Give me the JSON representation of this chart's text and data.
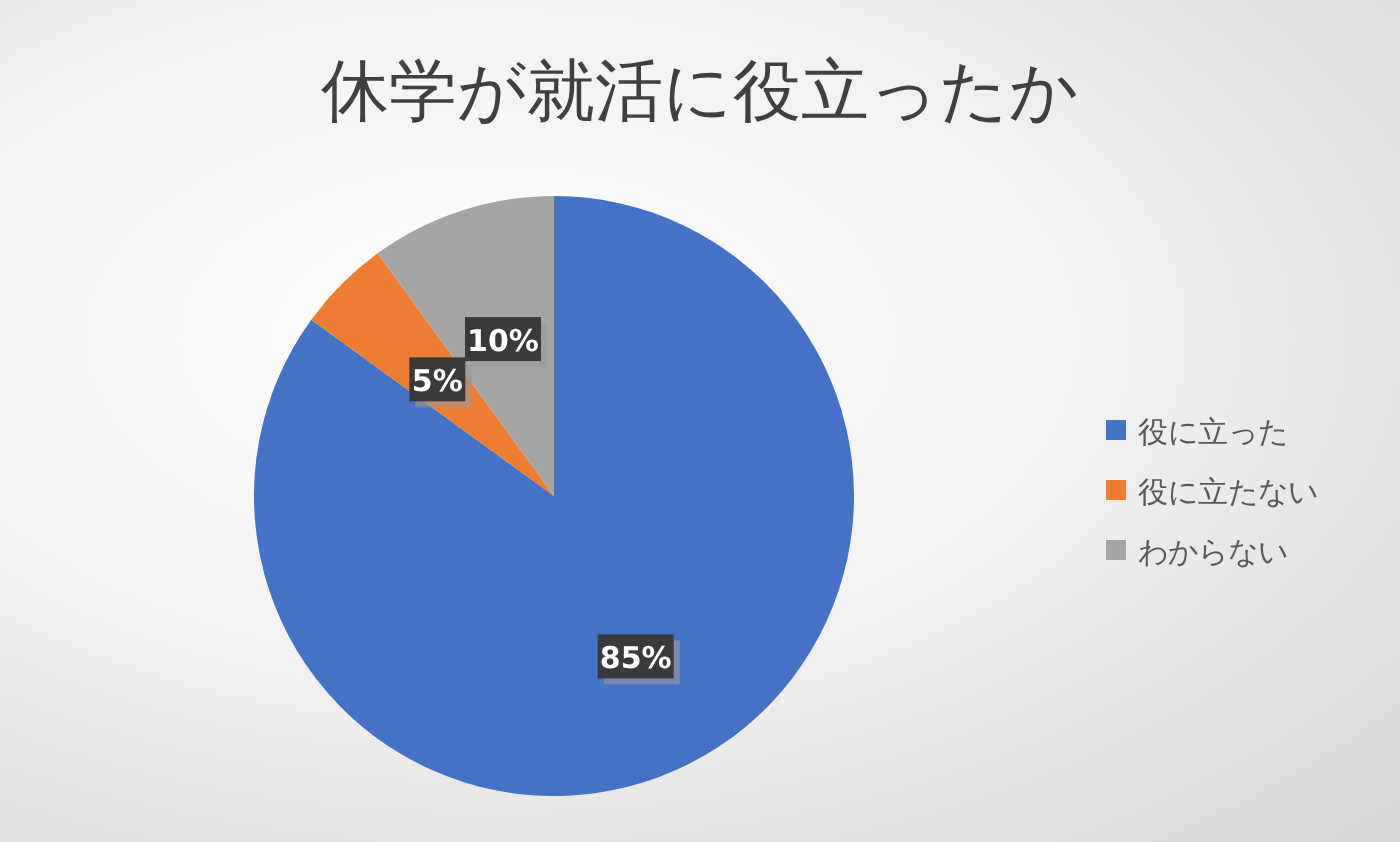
{
  "chart_data": {
    "type": "pie",
    "title": "休学が就活に役立ったか",
    "categories": [
      "役に立った",
      "役に立たない",
      "わからない"
    ],
    "values": [
      85,
      5,
      10
    ],
    "colors": [
      "#4472c4",
      "#ed7d31",
      "#a5a5a5"
    ],
    "value_labels": [
      "85%",
      "5%",
      "10%"
    ],
    "legend": "right"
  }
}
